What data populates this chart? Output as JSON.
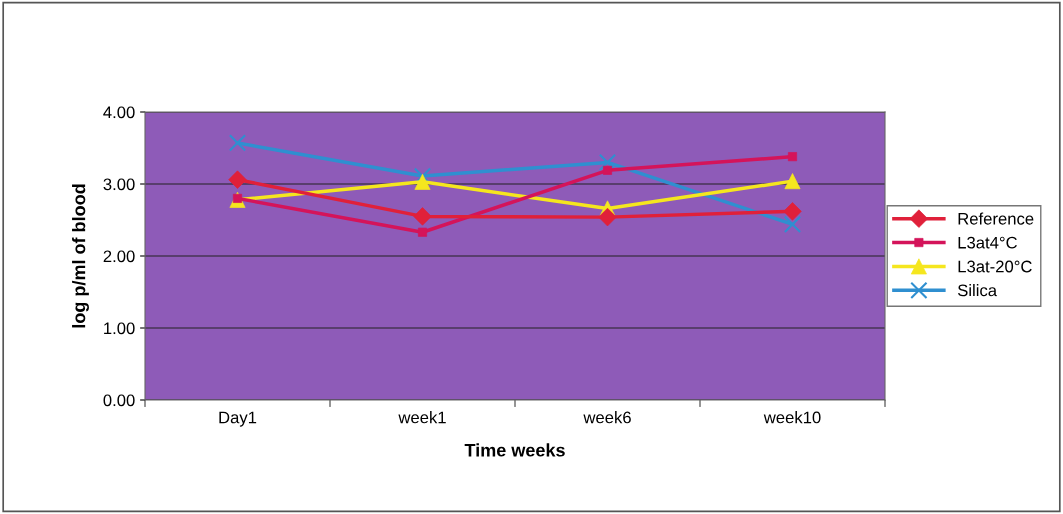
{
  "chart_data": {
    "type": "line",
    "xlabel": "Time weeks",
    "ylabel": "log p/ml of blood",
    "categories": [
      "Day1",
      "week1",
      "week6",
      "week10"
    ],
    "series": [
      {
        "name": "Reference",
        "color": "#e0203a",
        "marker": "diamond",
        "values": [
          3.06,
          2.55,
          2.54,
          2.62
        ]
      },
      {
        "name": "L3at4°C",
        "color": "#d4145a",
        "marker": "square",
        "values": [
          2.8,
          2.33,
          3.19,
          3.38
        ]
      },
      {
        "name": "L3at-20°C",
        "color": "#f5e61e",
        "marker": "triangle",
        "values": [
          2.78,
          3.03,
          2.66,
          3.04
        ]
      },
      {
        "name": "Silica",
        "color": "#2f8fd0",
        "marker": "cross",
        "values": [
          3.57,
          3.11,
          3.3,
          2.44
        ]
      }
    ],
    "ylim": [
      0,
      4
    ],
    "yticks": [
      {
        "value": 0,
        "label": "0.00"
      },
      {
        "value": 1,
        "label": "1.00"
      },
      {
        "value": 2,
        "label": "2.00"
      },
      {
        "value": 3,
        "label": "3.00"
      },
      {
        "value": 4,
        "label": "4.00"
      }
    ],
    "grid": "y",
    "legend": "right"
  }
}
